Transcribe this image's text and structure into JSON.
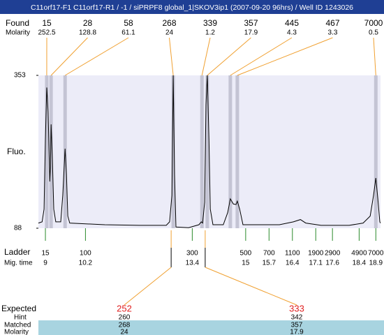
{
  "chart_data": {
    "type": "electropherogram",
    "title": "C11orf17-F1  C11orf17-R1 / -1 / siPRPF8 global_1|SKOV3ip1 (2007-09-20 96hrs) / Well ID 1243026",
    "ylabel": "Fluo.",
    "ylim": [
      88,
      353
    ],
    "yticks": [
      88,
      353
    ],
    "xlim": [
      8.79,
      19.04
    ],
    "xlabel": "Mig. time",
    "xticks": [
      9,
      10.2,
      13.4,
      15,
      15.7,
      16.4,
      17.1,
      17.6,
      18.4,
      18.9
    ],
    "ladder": {
      "label": "Ladder",
      "sizes": [
        15,
        100,
        300,
        500,
        700,
        1100,
        1900,
        2900,
        4900,
        7000
      ]
    },
    "peaks": {
      "label": "Found",
      "molarity_label": "Molarity",
      "sizes": [
        15,
        28,
        58,
        268,
        339,
        357,
        445,
        467,
        7000
      ],
      "molarity": [
        252.5,
        128.8,
        61.1,
        24,
        1.2,
        17.9,
        4.3,
        3.3,
        0.5
      ],
      "times": [
        9.04,
        9.17,
        9.59,
        12.83,
        13.69,
        13.85,
        14.54,
        14.75,
        18.9
      ]
    },
    "trace": {
      "x": [
        8.79,
        8.9,
        8.96,
        9.0,
        9.04,
        9.08,
        9.13,
        9.15,
        9.17,
        9.21,
        9.25,
        9.31,
        9.46,
        9.52,
        9.59,
        9.63,
        9.67,
        9.73,
        10.78,
        11.82,
        12.62,
        12.72,
        12.79,
        12.83,
        12.87,
        12.91,
        13.29,
        13.6,
        13.67,
        13.71,
        13.77,
        13.81,
        13.85,
        13.9,
        13.94,
        14.02,
        14.33,
        14.46,
        14.54,
        14.63,
        14.71,
        14.75,
        14.82,
        14.92,
        16.01,
        16.43,
        16.64,
        16.8,
        17.26,
        18.1,
        18.52,
        18.73,
        18.83,
        18.9,
        18.96,
        19.02,
        19.04
      ],
      "values": [
        97,
        99,
        121,
        242,
        332,
        290,
        169,
        193,
        268,
        205,
        121,
        99,
        99,
        145,
        226,
        181,
        109,
        97,
        94,
        93,
        93,
        99,
        145,
        353,
        181,
        90,
        89,
        94,
        99,
        97,
        133,
        302,
        353,
        242,
        121,
        94,
        94,
        115,
        139,
        130,
        129,
        135,
        121,
        94,
        94,
        99,
        103,
        97,
        93,
        93,
        97,
        109,
        145,
        175,
        139,
        99,
        97
      ],
      "color": "#000000"
    },
    "expected": {
      "label": "Expected",
      "values": [
        252,
        333
      ]
    },
    "hint": {
      "label": "Hint",
      "values": [
        260,
        342
      ]
    },
    "matched": {
      "label": "Matched",
      "values": [
        268,
        357
      ]
    },
    "matched_molarity": {
      "label": "Molarity",
      "values": [
        24,
        17.9
      ]
    }
  }
}
